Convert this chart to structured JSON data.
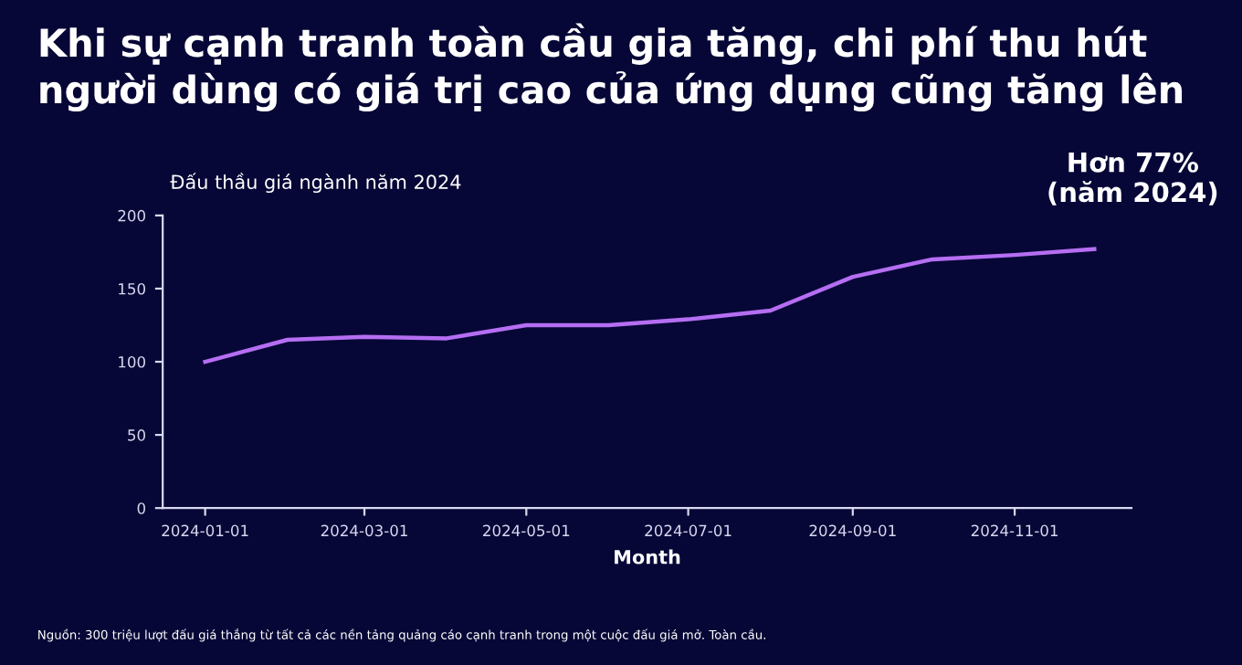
{
  "chart_data": {
    "type": "line",
    "title": "Khi sự cạnh tranh toàn cầu gia tăng, chi phí thu hút người dùng có giá trị cao của ứng dụng cũng tăng lên",
    "subtitle": "Đấu thầu giá ngành năm 2024",
    "xlabel": "Month",
    "x": [
      "2024-01-01",
      "2024-02-01",
      "2024-03-01",
      "2024-04-01",
      "2024-05-01",
      "2024-06-01",
      "2024-07-01",
      "2024-08-01",
      "2024-09-01",
      "2024-10-01",
      "2024-11-01",
      "2024-12-01"
    ],
    "series": [
      {
        "color": "#b56ef2",
        "values": [
          100,
          115,
          117,
          116,
          125,
          125,
          129,
          135,
          158,
          170,
          173,
          177
        ]
      }
    ],
    "xlim": [
      "2023-12-16",
      "2024-12-15"
    ],
    "xticks": [
      {
        "value": "2024-01-01",
        "label": "2024-01-01"
      },
      {
        "value": "2024-03-01",
        "label": "2024-03-01"
      },
      {
        "value": "2024-05-01",
        "label": "2024-05-01"
      },
      {
        "value": "2024-07-01",
        "label": "2024-07-01"
      },
      {
        "value": "2024-09-01",
        "label": "2024-09-01"
      },
      {
        "value": "2024-11-01",
        "label": "2024-11-01"
      }
    ],
    "ylim": [
      0,
      200
    ],
    "yticks": [
      0,
      50,
      100,
      150,
      200
    ],
    "grid": false,
    "legend": false,
    "marker": "none",
    "line_style": "solid",
    "annotations": [
      "Hơn 77%\n(năm 2024)",
      "Nguồn: 300 triệu lượt đấu giá thắng từ tất cả các nền tảng quảng cáo cạnh tranh trong một cuộc đấu giá mở. Toàn cầu."
    ]
  }
}
